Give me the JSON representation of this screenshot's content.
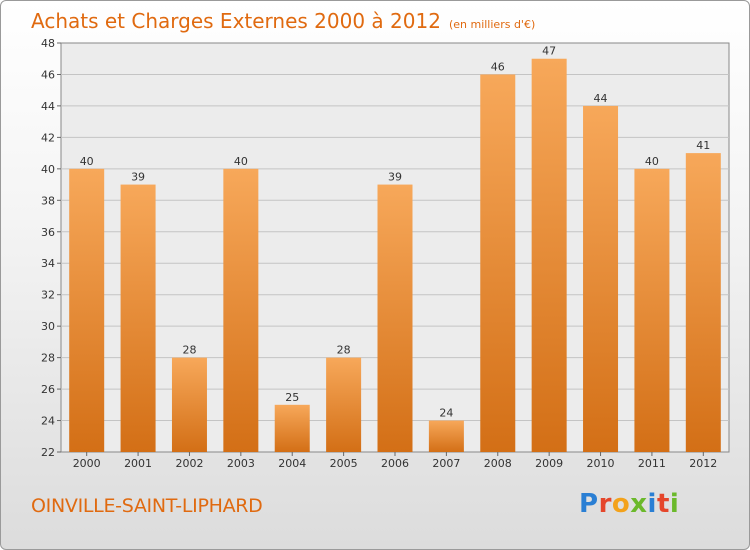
{
  "header": {
    "title": "Achats et Charges Externes 2000 à 2012",
    "subtitle": "(en milliers d'€)"
  },
  "footer": {
    "commune": "OINVILLE-SAINT-LIPHARD",
    "logo_letters": [
      "P",
      "r",
      "o",
      "x",
      "i",
      "t",
      "i"
    ]
  },
  "colors": {
    "title": "#e06a10",
    "bar_top": "#f7a85a",
    "bar_bottom": "#d36f16",
    "logo": [
      "#2a7fd4",
      "#e5462b",
      "#f3a21b",
      "#6bb92b",
      "#2a7fd4",
      "#e5462b",
      "#6bb92b"
    ]
  },
  "chart_data": {
    "type": "bar",
    "title": "Achats et Charges Externes 2000 à 2012",
    "subtitle": "(en milliers d'€)",
    "categories": [
      "2000",
      "2001",
      "2002",
      "2003",
      "2004",
      "2005",
      "2006",
      "2007",
      "2008",
      "2009",
      "2010",
      "2011",
      "2012"
    ],
    "values": [
      40,
      39,
      28,
      40,
      25,
      28,
      39,
      24,
      46,
      47,
      44,
      40,
      41
    ],
    "ylim": [
      22,
      48
    ],
    "yticks": [
      22,
      24,
      26,
      28,
      30,
      32,
      34,
      36,
      38,
      40,
      42,
      44,
      46,
      48
    ],
    "grid": true,
    "legend": "none"
  }
}
